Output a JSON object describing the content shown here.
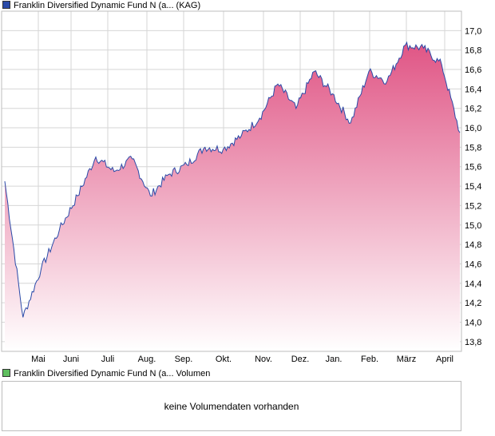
{
  "price_legend": {
    "label": "Franklin Diversified Dynamic Fund N (a... (KAG)",
    "color": "#2a4aa8"
  },
  "volume_legend": {
    "label": "Franklin Diversified Dynamic Fund N (a... Volumen",
    "color": "#5fbf5f"
  },
  "volume_message": "keine Volumendaten vorhanden",
  "colors": {
    "line": "#2a4aa8",
    "fill_top": "#e05585",
    "fill_bottom": "#ffffff",
    "grid": "#d6d6d6",
    "border": "#bdbdbd"
  },
  "chart_data": {
    "type": "area",
    "x_tick_labels": [
      "Mai",
      "Juni",
      "Juli",
      "Aug.",
      "Sep.",
      "Okt.",
      "Nov.",
      "Dez.",
      "Jan.",
      "Feb.",
      "März",
      "April"
    ],
    "y_ticks": [
      13.8,
      14.0,
      14.2,
      14.4,
      14.6,
      14.8,
      15.0,
      15.2,
      15.4,
      15.6,
      15.8,
      16.0,
      16.2,
      16.4,
      16.6,
      16.8,
      17.0
    ],
    "ylim": [
      13.7,
      17.2
    ],
    "x": [
      0,
      0.5,
      1,
      1.5,
      2,
      2.5,
      3,
      3.5,
      4,
      4.5,
      5,
      5.5,
      6,
      6.5,
      7,
      7.5,
      8,
      8.5,
      9,
      9.5,
      10,
      10.5,
      11,
      11.5,
      12,
      12.5
    ],
    "values": [
      15.45,
      14.05,
      14.55,
      14.95,
      15.3,
      15.7,
      15.55,
      15.68,
      15.3,
      15.52,
      15.62,
      15.8,
      15.78,
      15.92,
      16.1,
      16.45,
      16.2,
      16.58,
      16.35,
      16.05,
      16.58,
      16.48,
      16.85,
      16.82,
      16.65,
      15.95
    ],
    "grid": true,
    "y_axis_position": "right"
  }
}
